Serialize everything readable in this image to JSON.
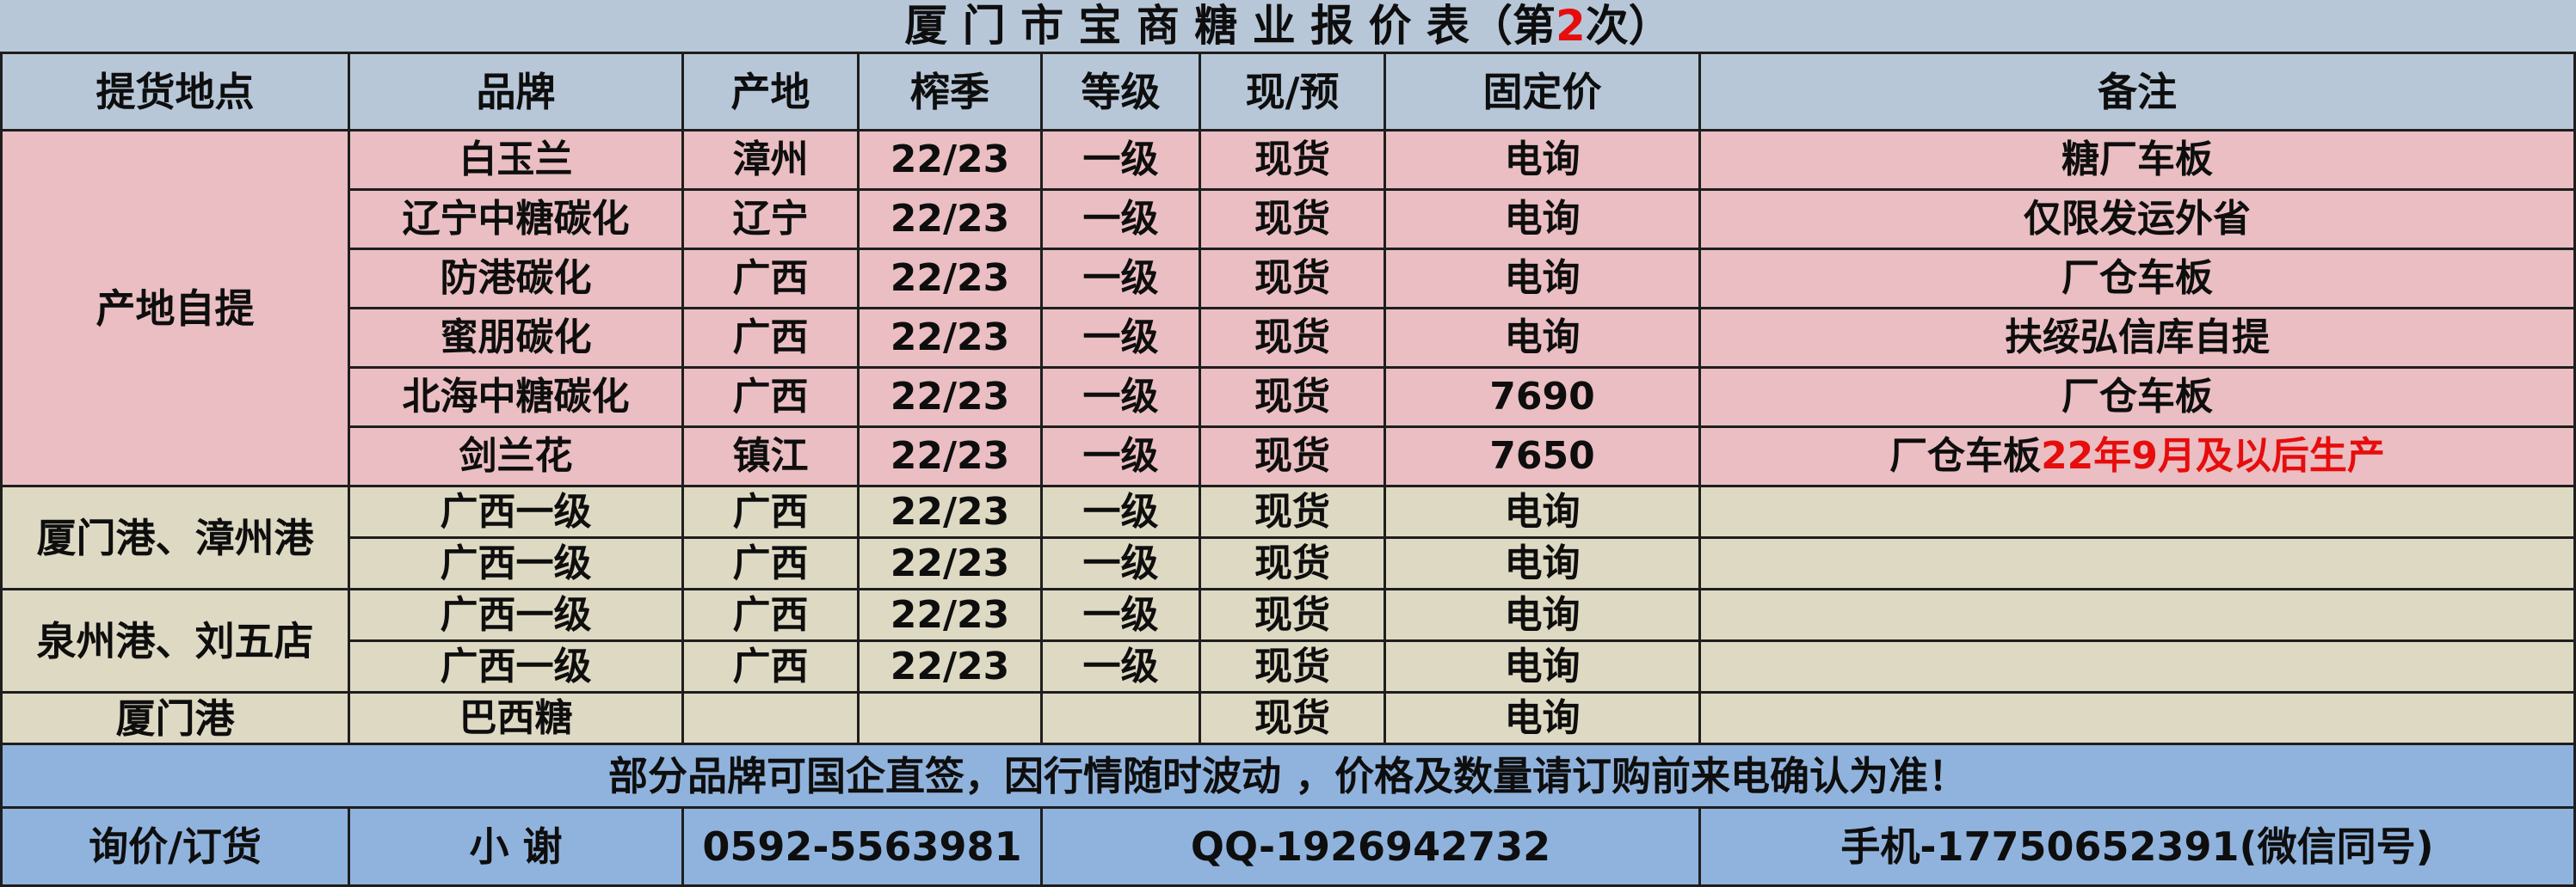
{
  "title": {
    "prefix": "厦 门 市 宝 商 糖 业 报 价 表（第",
    "edition": "2",
    "suffix": "次）"
  },
  "colors": {
    "header_background": "#b7c7d8",
    "pink_section": "#eabec2",
    "beige_section": "#ded9c3",
    "footer_blue": "#90b3dd",
    "accent_red": "#e60d0d",
    "grid_line": "#1e1e1e",
    "text": "#0e0e0e"
  },
  "table": {
    "headers": [
      "提货地点",
      "品牌",
      "产地",
      "榨季",
      "等级",
      "现/预",
      "固定价",
      "备注"
    ],
    "groups": [
      {
        "location": "产地自提",
        "rows": [
          {
            "brand": "白玉兰",
            "origin": "漳州",
            "season": "22/23",
            "grade": "一级",
            "type": "现货",
            "price": "电询",
            "remark": "糖厂车板",
            "remark_red": ""
          },
          {
            "brand": "辽宁中糖碳化",
            "origin": "辽宁",
            "season": "22/23",
            "grade": "一级",
            "type": "现货",
            "price": "电询",
            "remark": "仅限发运外省",
            "remark_red": ""
          },
          {
            "brand": "防港碳化",
            "origin": "广西",
            "season": "22/23",
            "grade": "一级",
            "type": "现货",
            "price": "电询",
            "remark": "厂仓车板",
            "remark_red": ""
          },
          {
            "brand": "蜜朋碳化",
            "origin": "广西",
            "season": "22/23",
            "grade": "一级",
            "type": "现货",
            "price": "电询",
            "remark": "扶绥弘信库自提",
            "remark_red": ""
          },
          {
            "brand": "北海中糖碳化",
            "origin": "广西",
            "season": "22/23",
            "grade": "一级",
            "type": "现货",
            "price": "7690",
            "remark": "厂仓车板",
            "remark_red": ""
          },
          {
            "brand": "剑兰花",
            "origin": "镇江",
            "season": "22/23",
            "grade": "一级",
            "type": "现货",
            "price": "7650",
            "remark": "厂仓车板",
            "remark_red": "22年9月及以后生产"
          }
        ]
      },
      {
        "location": "厦门港、漳州港",
        "rows": [
          {
            "brand": "广西一级",
            "origin": "广西",
            "season": "22/23",
            "grade": "一级",
            "type": "现货",
            "price": "电询",
            "remark": "",
            "remark_red": ""
          },
          {
            "brand": "广西一级",
            "origin": "广西",
            "season": "22/23",
            "grade": "一级",
            "type": "现货",
            "price": "电询",
            "remark": "",
            "remark_red": ""
          }
        ]
      },
      {
        "location": "泉州港、刘五店",
        "rows": [
          {
            "brand": "广西一级",
            "origin": "广西",
            "season": "22/23",
            "grade": "一级",
            "type": "现货",
            "price": "电询",
            "remark": "",
            "remark_red": ""
          },
          {
            "brand": "广西一级",
            "origin": "广西",
            "season": "22/23",
            "grade": "一级",
            "type": "现货",
            "price": "电询",
            "remark": "",
            "remark_red": ""
          }
        ]
      },
      {
        "location": "厦门港",
        "rows": [
          {
            "brand": "巴西糖",
            "origin": "",
            "season": "",
            "grade": "",
            "type": "现货",
            "price": "电询",
            "remark": "",
            "remark_red": ""
          }
        ]
      }
    ]
  },
  "notice": "部分品牌可国企直签，因行情随时波动 ，价格及数量请订购前来电确认为准！",
  "contact": {
    "label": "询价/订货",
    "name": "小 谢",
    "phone": "0592-5563981",
    "qq": "QQ-1926942732",
    "mobile": "手机-17750652391(微信同号)"
  }
}
